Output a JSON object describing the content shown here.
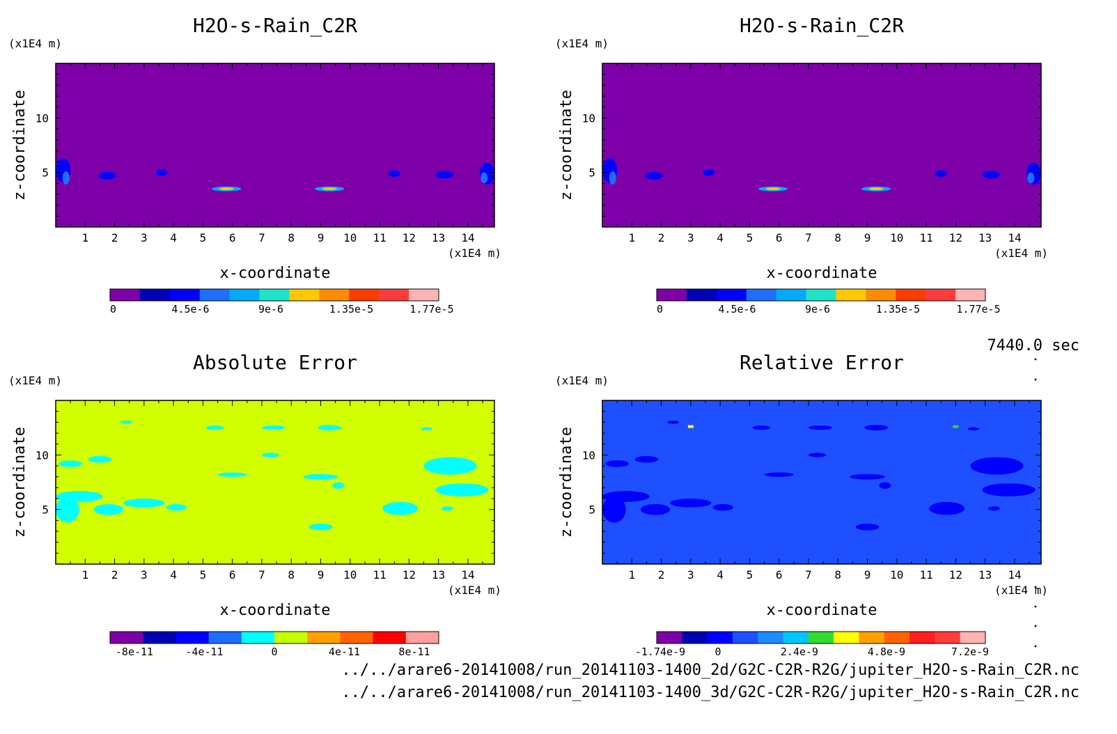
{
  "chart_data": [
    {
      "type": "heatmap",
      "title": "H2O-s-Rain_C2R",
      "xlabel": "x-coordinate",
      "ylabel": "z-coordinate",
      "x_unit": "(x1E4 m)",
      "y_unit": "(x1E4 m)",
      "xlim": [
        0,
        14.9
      ],
      "ylim": [
        0,
        15
      ],
      "x_ticks": [
        "1",
        "2",
        "3",
        "4",
        "5",
        "6",
        "7",
        "8",
        "9",
        "10",
        "11",
        "12",
        "13",
        "14"
      ],
      "y_ticks": [
        "5",
        "10"
      ],
      "colorbar_labels": [
        "0",
        "4.5e-6",
        "9e-6",
        "1.35e-5",
        "1.77e-5"
      ],
      "colorbar_colors": [
        "#7d00a8",
        "#0000b4",
        "#0000ff",
        "#1e6eff",
        "#00aaff",
        "#1fe3c8",
        "#ffc800",
        "#ff8c00",
        "#ff3c00",
        "#ff3c3c",
        "#ffb4b4"
      ],
      "background_color": "#7d00a8"
    },
    {
      "type": "heatmap",
      "title": "H2O-s-Rain_C2R",
      "xlabel": "x-coordinate",
      "ylabel": "z-coordinate",
      "x_unit": "(x1E4 m)",
      "y_unit": "(x1E4 m)",
      "xlim": [
        0,
        14.9
      ],
      "ylim": [
        0,
        15
      ],
      "x_ticks": [
        "1",
        "2",
        "3",
        "4",
        "5",
        "6",
        "7",
        "8",
        "9",
        "10",
        "11",
        "12",
        "13",
        "14"
      ],
      "y_ticks": [
        "5",
        "10"
      ],
      "colorbar_labels": [
        "0",
        "4.5e-6",
        "9e-6",
        "1.35e-5",
        "1.77e-5"
      ],
      "colorbar_colors": [
        "#7d00a8",
        "#0000b4",
        "#0000ff",
        "#1e6eff",
        "#00aaff",
        "#1fe3c8",
        "#ffc800",
        "#ff8c00",
        "#ff3c00",
        "#ff3c3c",
        "#ffb4b4"
      ],
      "background_color": "#7d00a8"
    },
    {
      "type": "heatmap",
      "title": "Absolute Error",
      "xlabel": "x-coordinate",
      "ylabel": "z-coordinate",
      "x_unit": "(x1E4 m)",
      "y_unit": "(x1E4 m)",
      "xlim": [
        0,
        14.9
      ],
      "ylim": [
        0,
        15
      ],
      "x_ticks": [
        "1",
        "2",
        "3",
        "4",
        "5",
        "6",
        "7",
        "8",
        "9",
        "10",
        "11",
        "12",
        "13",
        "14"
      ],
      "y_ticks": [
        "5",
        "10"
      ],
      "colorbar_labels": [
        "-8e-11",
        "-4e-11",
        "0",
        "4e-11",
        "8e-11"
      ],
      "colorbar_colors": [
        "#7d00a8",
        "#0000b4",
        "#0000ff",
        "#1e6eff",
        "#00ffff",
        "#c8ff00",
        "#ffa000",
        "#ff6400",
        "#ff0000",
        "#ffa0a0"
      ],
      "background_color": "#d2ff00"
    },
    {
      "type": "heatmap",
      "title": "Relative Error",
      "xlabel": "x-coordinate",
      "ylabel": "z-coordinate",
      "x_unit": "(x1E4 m)",
      "y_unit": "(x1E4 m)",
      "xlim": [
        0,
        14.9
      ],
      "ylim": [
        0,
        15
      ],
      "x_ticks": [
        "1",
        "2",
        "3",
        "4",
        "5",
        "6",
        "7",
        "8",
        "9",
        "10",
        "11",
        "12",
        "13",
        "14"
      ],
      "y_ticks": [
        "5",
        "10"
      ],
      "colorbar_labels": [
        "-1.74e-9",
        "0",
        "2.4e-9",
        "4.8e-9",
        "7.2e-9"
      ],
      "colorbar_colors": [
        "#7d00a8",
        "#0000b4",
        "#0000ff",
        "#1e50ff",
        "#1e8cff",
        "#00c8ff",
        "#32dc32",
        "#ffff00",
        "#ffa000",
        "#ff6400",
        "#ff1e1e",
        "#ff3c3c",
        "#ffb4b4"
      ],
      "background_color": "#1e50ff"
    }
  ],
  "time_label": "7440.0 sec",
  "file_paths": [
    "../../arare6-20141008/run_20141103-1400_2d/G2C-C2R-R2G/jupiter_H2O-s-Rain_C2R.nc",
    "../../arare6-20141008/run_20141103-1400_3d/G2C-C2R-R2G/jupiter_H2O-s-Rain_C2R.nc"
  ]
}
